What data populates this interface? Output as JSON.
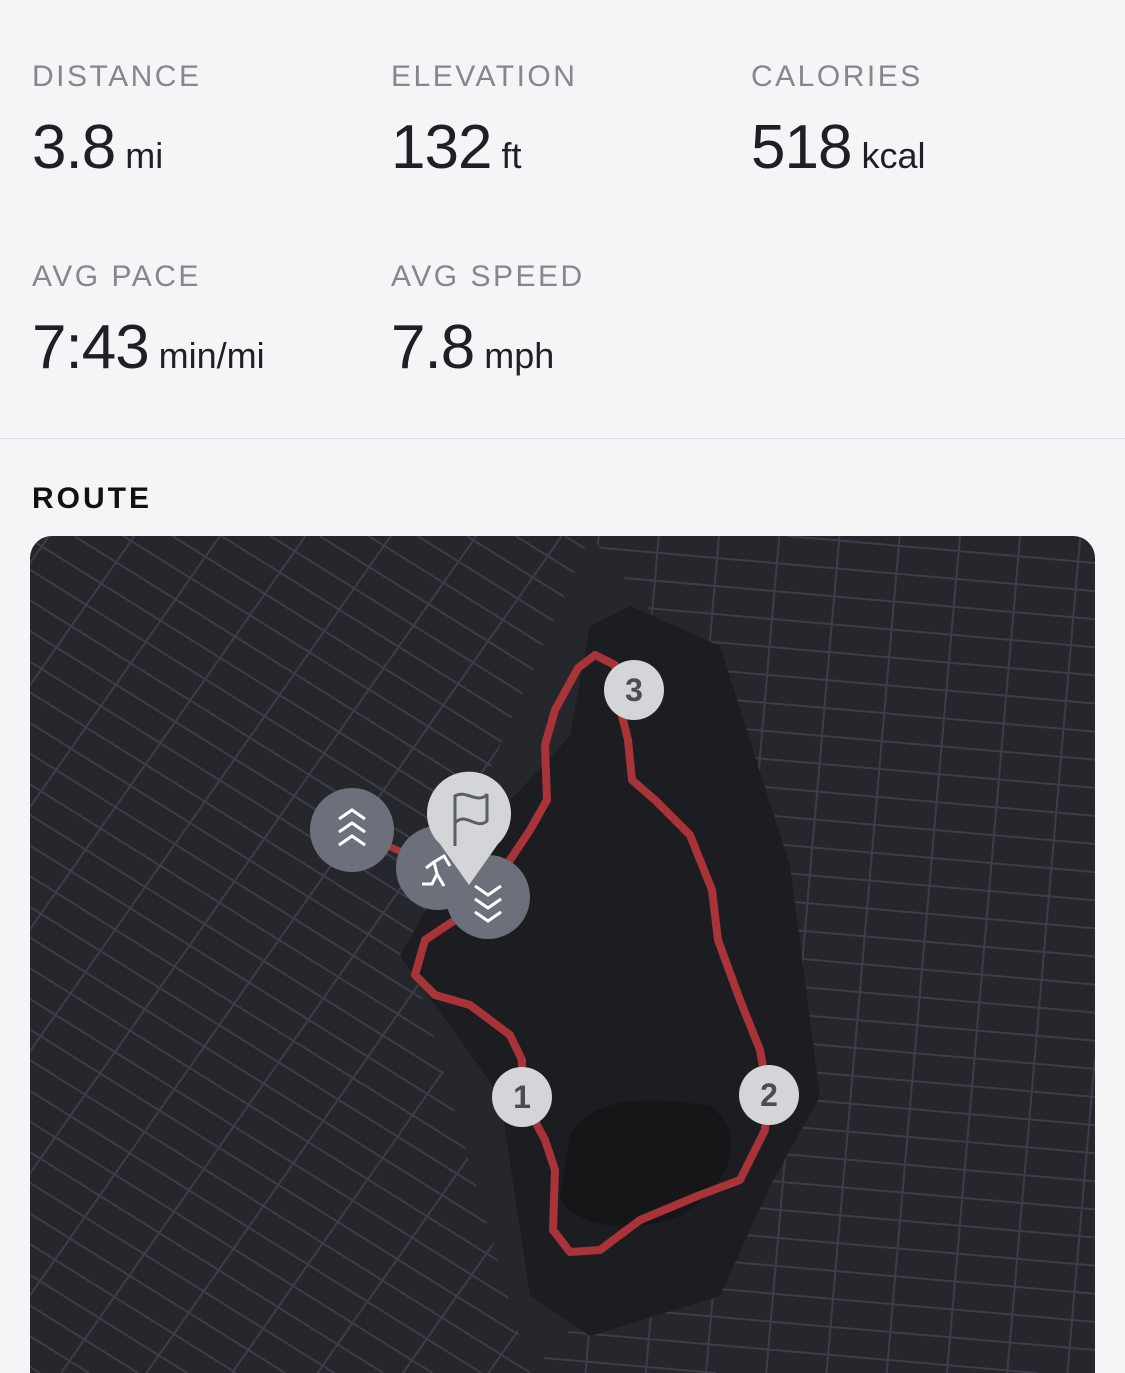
{
  "stats": [
    {
      "label": "DISTANCE",
      "value": "3.8",
      "unit": "mi"
    },
    {
      "label": "ELEVATION",
      "value": "132",
      "unit": "ft"
    },
    {
      "label": "CALORIES",
      "value": "518",
      "unit": "kcal"
    },
    {
      "label": "AVG PACE",
      "value": "7:43",
      "unit": "min/mi"
    },
    {
      "label": "AVG SPEED",
      "value": "7.8",
      "unit": "mph"
    }
  ],
  "route": {
    "title": "ROUTE",
    "route_color": "#a8343a",
    "markers": [
      {
        "label": "1"
      },
      {
        "label": "2"
      },
      {
        "label": "3"
      }
    ],
    "icons": [
      "elevation-up-icon",
      "runner-icon",
      "finish-flag-icon",
      "elevation-down-icon"
    ]
  }
}
